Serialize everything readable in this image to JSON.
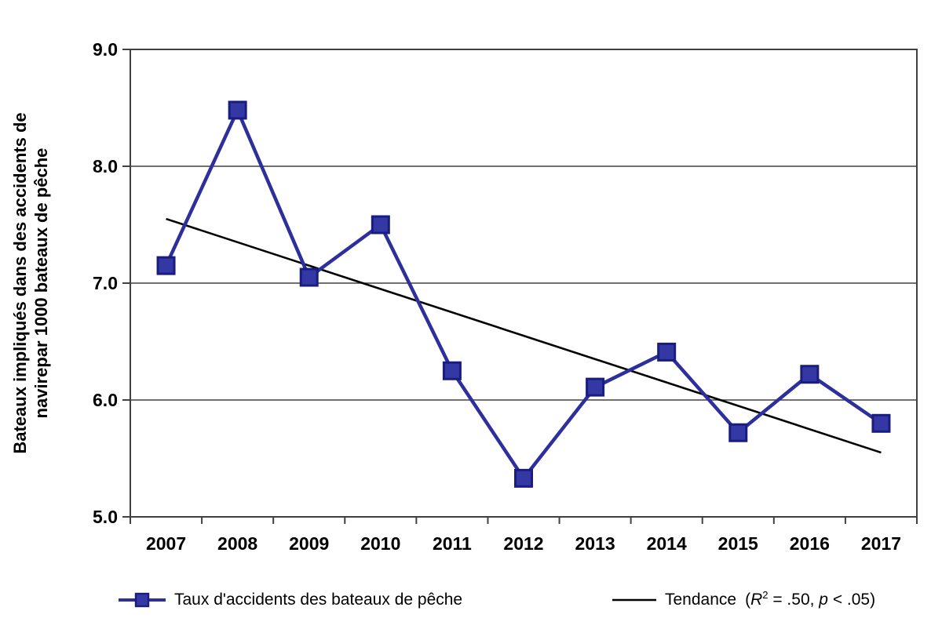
{
  "chart_data": {
    "type": "line",
    "x": [
      "2007",
      "2008",
      "2009",
      "2010",
      "2011",
      "2012",
      "2013",
      "2014",
      "2015",
      "2016",
      "2017"
    ],
    "series": [
      {
        "name": "Taux d'accidents des bateaux de pêche",
        "values": [
          7.15,
          8.48,
          7.05,
          7.5,
          6.25,
          5.33,
          6.11,
          6.41,
          5.72,
          6.22,
          5.8
        ]
      },
      {
        "name": "Tendance",
        "kind": "trendline",
        "x_endpoints": [
          "2007",
          "2017"
        ],
        "values": [
          7.55,
          5.55
        ],
        "r_squared": ".50",
        "p_value": "< .05"
      }
    ],
    "title": "",
    "xlabel": "",
    "ylabel": "Bateaux impliqués dans des accidents de navirepar 1000 bateaux de pêche",
    "ylabel_lines": [
      "Bateaux impliqués dans des accidents de",
      "navirepar 1000 bateaux de pêche"
    ],
    "ylim": [
      5.0,
      9.0
    ],
    "ytick_labels": [
      "9.0",
      "8.0",
      "7.0",
      "6.0",
      "5.0"
    ],
    "grid": "horizontal",
    "legend_position": "bottom",
    "colors": {
      "series_line": "#2c2f9c",
      "marker_fill": "#3438a4",
      "marker_border": "#1a1d7d",
      "trend_line": "#000000",
      "axis": "#404040",
      "text": "#000000",
      "background": "#ffffff"
    }
  },
  "legend": {
    "series1_label": "Taux d'accidents des bateaux de pêche",
    "trend_label": "Tendance",
    "trend_stats": {
      "open": "(",
      "r": "R",
      "r_sup": "2",
      "r_eq": " = .50, ",
      "p": "p",
      "close": " < .05)"
    }
  }
}
